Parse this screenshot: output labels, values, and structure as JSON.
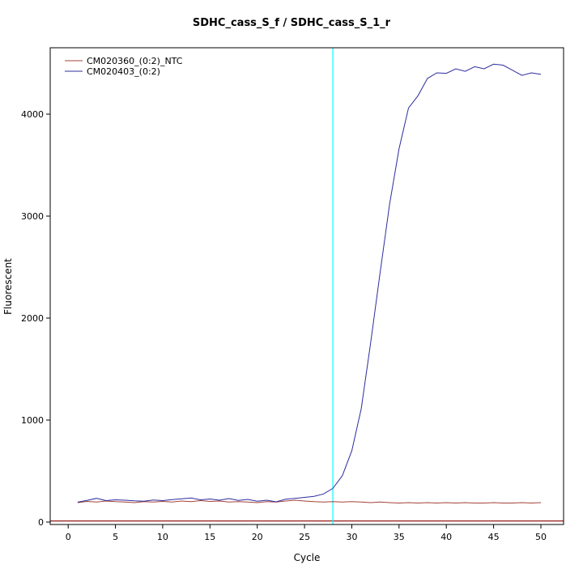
{
  "page": {
    "background_color": "#ffffff",
    "frame_color": "#000000"
  },
  "chart_data": {
    "type": "line",
    "title": "SDHC_cass_S_f / SDHC_cass_S_1_r",
    "xlabel": "Cycle",
    "ylabel": "Fluorescent",
    "xlim": [
      0,
      50
    ],
    "ylim": [
      0,
      4651
    ],
    "grid": false,
    "legend_position": "top-left",
    "x_ticks": [
      0,
      5,
      10,
      15,
      20,
      25,
      30,
      35,
      40,
      45,
      50
    ],
    "y_ticks": [
      0,
      1000,
      2000,
      3000,
      4000
    ],
    "threshold_line": {
      "value": 10,
      "color": "#8b0000"
    },
    "ct_marker": {
      "cycle": 28,
      "color": "#00ffff"
    },
    "x": [
      1,
      2,
      3,
      4,
      5,
      6,
      7,
      8,
      9,
      10,
      11,
      12,
      13,
      14,
      15,
      16,
      17,
      18,
      19,
      20,
      21,
      22,
      23,
      24,
      25,
      26,
      27,
      28,
      29,
      30,
      31,
      32,
      33,
      34,
      35,
      36,
      37,
      38,
      39,
      40,
      41,
      42,
      43,
      44,
      45,
      46,
      47,
      48,
      49,
      50
    ],
    "series": [
      {
        "name": "CM020360_(0:2)_NTC",
        "color": "#a5423a",
        "values": [
          190,
          202,
          196,
          206,
          200,
          196,
          190,
          200,
          196,
          202,
          196,
          206,
          200,
          210,
          202,
          206,
          196,
          200,
          196,
          190,
          200,
          196,
          206,
          214,
          206,
          200,
          196,
          200,
          196,
          200,
          196,
          190,
          196,
          190,
          186,
          190,
          186,
          190,
          186,
          190,
          186,
          190,
          186,
          186,
          190,
          186,
          186,
          190,
          186,
          190
        ]
      },
      {
        "name": "CM020403_(0:2)",
        "color": "#2d2d9e",
        "values": [
          195,
          212,
          232,
          210,
          218,
          214,
          208,
          204,
          216,
          210,
          220,
          228,
          236,
          218,
          226,
          214,
          230,
          212,
          222,
          204,
          214,
          198,
          224,
          232,
          242,
          252,
          275,
          330,
          455,
          700,
          1110,
          1760,
          2450,
          3120,
          3660,
          4060,
          4180,
          4350,
          4405,
          4400,
          4445,
          4420,
          4465,
          4445,
          4490,
          4480,
          4430,
          4380,
          4405,
          4390
        ]
      }
    ]
  }
}
